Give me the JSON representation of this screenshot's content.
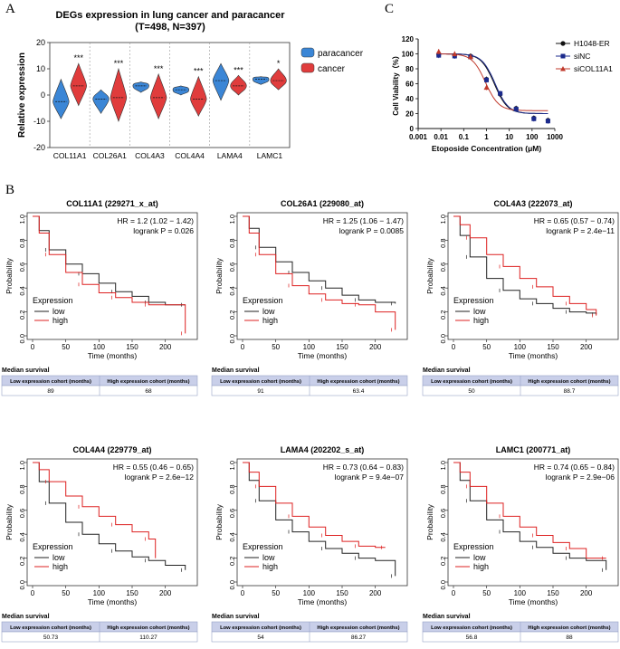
{
  "panel_labels": {
    "a": "A",
    "b": "B",
    "c": "C"
  },
  "chart_data": [
    {
      "id": "violin",
      "type": "violin",
      "title_line1": "DEGs expression in lung cancer and paracancer",
      "title_line2": "(T=498, N=397)",
      "ylabel": "Relative expression",
      "ylim": [
        -20,
        20
      ],
      "yticks": [
        -20,
        -10,
        0,
        10,
        20
      ],
      "categories": [
        "COL11A1",
        "COL26A1",
        "COL4A3",
        "COL4A4",
        "LAMA4",
        "LAMC1"
      ],
      "significance": [
        "***",
        "***",
        "***",
        "***",
        "***",
        "*"
      ],
      "series": [
        {
          "name": "paracancer",
          "color": "#3b86d6",
          "median": [
            -2.5,
            -1.5,
            3.5,
            2,
            5.5,
            6
          ],
          "min": [
            -9,
            -7,
            1,
            0,
            -2,
            4
          ],
          "max": [
            6,
            2,
            5,
            3.5,
            12,
            7
          ]
        },
        {
          "name": "cancer",
          "color": "#e03c3c",
          "median": [
            3.5,
            -1,
            -1,
            -1.5,
            3.5,
            5.5
          ],
          "min": [
            -4,
            -10,
            -9,
            -8,
            0,
            2
          ],
          "max": [
            12,
            10,
            8,
            7,
            7.5,
            10
          ]
        }
      ]
    },
    {
      "id": "viability",
      "type": "line",
      "ylabel": "Cell Viability（%）",
      "xlabel": "Etoposide Concentration (μM)",
      "xscale": "log",
      "xlim": [
        0.001,
        1000
      ],
      "xticks": [
        "0.001",
        "0.01",
        "0.1",
        "1",
        "10",
        "100",
        "1000"
      ],
      "ylim": [
        0,
        120
      ],
      "yticks": [
        0,
        20,
        40,
        60,
        80,
        100,
        120
      ],
      "series": [
        {
          "name": "H1048-ER",
          "marker": "circle",
          "color": "#111111",
          "x": [
            0.008,
            0.04,
            0.2,
            1,
            4,
            20,
            120,
            500
          ],
          "y": [
            99,
            98,
            97,
            66,
            46,
            27,
            14,
            11
          ]
        },
        {
          "name": "siNC",
          "marker": "square",
          "color": "#1b2a8c",
          "x": [
            0.008,
            0.04,
            0.2,
            1,
            4,
            20,
            120,
            500
          ],
          "y": [
            98,
            97,
            96,
            65,
            47,
            26,
            13,
            10
          ]
        },
        {
          "name": "siCOL11A1",
          "marker": "triangle",
          "color": "#c0392b",
          "x": [
            0.008,
            0.04,
            0.2,
            1
          ],
          "y": [
            103,
            100,
            96,
            55
          ]
        }
      ],
      "curves": [
        {
          "color": "#111111",
          "ic50": 2.2,
          "bottom": 20
        },
        {
          "color": "#1b2a8c",
          "ic50": 2.4,
          "bottom": 20
        },
        {
          "color": "#c0392b",
          "ic50": 0.9,
          "bottom": 24
        }
      ]
    },
    {
      "id": "km-col11a1",
      "type": "km",
      "title": "COL11A1 (229271_x_at)",
      "hr": "HR = 1.2 (1.02 − 1.42)",
      "logrank": "logrank P = 0.026",
      "xlabel": "Time (months)",
      "ylabel": "Probability",
      "xlim": [
        0,
        240
      ],
      "xticks": [
        0,
        50,
        100,
        150,
        200
      ],
      "yticks": [
        0.0,
        0.2,
        0.4,
        0.6,
        0.8,
        1.0
      ],
      "legend_title": "Expression",
      "legend": [
        "low",
        "high"
      ],
      "series_colors": [
        "#222222",
        "#dd2020"
      ],
      "curves": [
        {
          "name": "low",
          "points": [
            [
              0,
              1
            ],
            [
              10,
              0.88
            ],
            [
              25,
              0.72
            ],
            [
              50,
              0.6
            ],
            [
              75,
              0.52
            ],
            [
              100,
              0.44
            ],
            [
              125,
              0.37
            ],
            [
              150,
              0.33
            ],
            [
              175,
              0.28
            ],
            [
              200,
              0.26
            ],
            [
              230,
              0.26
            ]
          ]
        },
        {
          "name": "high",
          "points": [
            [
              0,
              1
            ],
            [
              10,
              0.86
            ],
            [
              25,
              0.68
            ],
            [
              50,
              0.53
            ],
            [
              75,
              0.43
            ],
            [
              100,
              0.36
            ],
            [
              125,
              0.32
            ],
            [
              150,
              0.28
            ],
            [
              175,
              0.26
            ],
            [
              200,
              0.26
            ],
            [
              230,
              0.02
            ]
          ]
        }
      ],
      "median_label": "Median survival",
      "median_headers": [
        "Low expression cohort (months)",
        "High expression cohort (months)"
      ],
      "median_values": [
        "89",
        "68"
      ]
    },
    {
      "id": "km-col26a1",
      "type": "km",
      "title": "COL26A1 (229080_at)",
      "hr": "HR = 1.25 (1.06 − 1.47)",
      "logrank": "logrank P = 0.0085",
      "xlabel": "Time (months)",
      "ylabel": "Probability",
      "xlim": [
        0,
        240
      ],
      "xticks": [
        0,
        50,
        100,
        150,
        200
      ],
      "yticks": [
        0.0,
        0.2,
        0.4,
        0.6,
        0.8,
        1.0
      ],
      "legend_title": "Expression",
      "legend": [
        "low",
        "high"
      ],
      "series_colors": [
        "#222222",
        "#dd2020"
      ],
      "curves": [
        {
          "name": "low",
          "points": [
            [
              0,
              1
            ],
            [
              10,
              0.9
            ],
            [
              25,
              0.74
            ],
            [
              50,
              0.62
            ],
            [
              75,
              0.53
            ],
            [
              100,
              0.46
            ],
            [
              125,
              0.4
            ],
            [
              150,
              0.34
            ],
            [
              175,
              0.3
            ],
            [
              200,
              0.28
            ],
            [
              230,
              0.27
            ]
          ]
        },
        {
          "name": "high",
          "points": [
            [
              0,
              1
            ],
            [
              10,
              0.86
            ],
            [
              25,
              0.68
            ],
            [
              50,
              0.52
            ],
            [
              75,
              0.42
            ],
            [
              100,
              0.35
            ],
            [
              125,
              0.3
            ],
            [
              150,
              0.27
            ],
            [
              175,
              0.26
            ],
            [
              200,
              0.2
            ],
            [
              230,
              0.05
            ]
          ]
        }
      ],
      "median_label": "Median survival",
      "median_headers": [
        "Low expression cohort (months)",
        "High expression cohort (months)"
      ],
      "median_values": [
        "91",
        "63.4"
      ]
    },
    {
      "id": "km-col4a3",
      "type": "km",
      "title": "COL4A3 (222073_at)",
      "hr": "HR = 0.65 (0.57 − 0.74)",
      "logrank": "logrank P = 2.4e−11",
      "xlabel": "Time (months)",
      "ylabel": "Probability",
      "xlim": [
        0,
        240
      ],
      "xticks": [
        0,
        50,
        100,
        150,
        200
      ],
      "yticks": [
        0.0,
        0.2,
        0.4,
        0.6,
        0.8,
        1.0
      ],
      "legend_title": "Expression",
      "legend": [
        "low",
        "high"
      ],
      "series_colors": [
        "#222222",
        "#dd2020"
      ],
      "curves": [
        {
          "name": "low",
          "points": [
            [
              0,
              1
            ],
            [
              10,
              0.84
            ],
            [
              25,
              0.66
            ],
            [
              50,
              0.48
            ],
            [
              75,
              0.38
            ],
            [
              100,
              0.31
            ],
            [
              125,
              0.27
            ],
            [
              150,
              0.23
            ],
            [
              175,
              0.2
            ],
            [
              200,
              0.19
            ],
            [
              215,
              0.18
            ]
          ]
        },
        {
          "name": "high",
          "points": [
            [
              0,
              1
            ],
            [
              10,
              0.93
            ],
            [
              25,
              0.82
            ],
            [
              50,
              0.68
            ],
            [
              75,
              0.58
            ],
            [
              100,
              0.48
            ],
            [
              125,
              0.41
            ],
            [
              150,
              0.33
            ],
            [
              175,
              0.27
            ],
            [
              200,
              0.22
            ],
            [
              215,
              0.17
            ]
          ]
        }
      ],
      "median_label": "Median survival",
      "median_headers": [
        "Low expression cohort (months)",
        "High expression cohort (months)"
      ],
      "median_values": [
        "50",
        "88.7"
      ]
    },
    {
      "id": "km-col4a4",
      "type": "km",
      "title": "COL4A4 (229779_at)",
      "hr": "HR = 0.55 (0.46 − 0.65)",
      "logrank": "logrank P = 2.6e−12",
      "xlabel": "Time (months)",
      "ylabel": "Probability",
      "xlim": [
        0,
        240
      ],
      "xticks": [
        0,
        50,
        100,
        150,
        200
      ],
      "yticks": [
        0.0,
        0.2,
        0.4,
        0.6,
        0.8,
        1.0
      ],
      "legend_title": "Expression",
      "legend": [
        "low",
        "high"
      ],
      "series_colors": [
        "#222222",
        "#dd2020"
      ],
      "curves": [
        {
          "name": "low",
          "points": [
            [
              0,
              1
            ],
            [
              10,
              0.84
            ],
            [
              25,
              0.66
            ],
            [
              50,
              0.5
            ],
            [
              75,
              0.4
            ],
            [
              100,
              0.32
            ],
            [
              125,
              0.26
            ],
            [
              150,
              0.21
            ],
            [
              175,
              0.18
            ],
            [
              200,
              0.14
            ],
            [
              230,
              0.1
            ]
          ]
        },
        {
          "name": "high",
          "points": [
            [
              0,
              1
            ],
            [
              10,
              0.94
            ],
            [
              25,
              0.84
            ],
            [
              50,
              0.72
            ],
            [
              75,
              0.63
            ],
            [
              100,
              0.55
            ],
            [
              125,
              0.48
            ],
            [
              150,
              0.42
            ],
            [
              175,
              0.36
            ],
            [
              185,
              0.2
            ]
          ]
        }
      ],
      "median_label": "Median survival",
      "median_headers": [
        "Low expression cohort (months)",
        "High expression cohort (months)"
      ],
      "median_values": [
        "50.73",
        "110.27"
      ]
    },
    {
      "id": "km-lama4",
      "type": "km",
      "title": "LAMA4 (202202_s_at)",
      "hr": "HR = 0.73 (0.64 − 0.83)",
      "logrank": "logrank P = 9.4e−07",
      "xlabel": "Time (months)",
      "ylabel": "Probability",
      "xlim": [
        0,
        240
      ],
      "xticks": [
        0,
        50,
        100,
        150,
        200
      ],
      "yticks": [
        0.0,
        0.2,
        0.4,
        0.6,
        0.8,
        1.0
      ],
      "legend_title": "Expression",
      "legend": [
        "low",
        "high"
      ],
      "series_colors": [
        "#222222",
        "#dd2020"
      ],
      "curves": [
        {
          "name": "low",
          "points": [
            [
              0,
              1
            ],
            [
              10,
              0.85
            ],
            [
              25,
              0.68
            ],
            [
              50,
              0.52
            ],
            [
              75,
              0.42
            ],
            [
              100,
              0.34
            ],
            [
              125,
              0.28
            ],
            [
              150,
              0.24
            ],
            [
              175,
              0.2
            ],
            [
              200,
              0.18
            ],
            [
              230,
              0.05
            ]
          ]
        },
        {
          "name": "high",
          "points": [
            [
              0,
              1
            ],
            [
              10,
              0.92
            ],
            [
              25,
              0.8
            ],
            [
              50,
              0.66
            ],
            [
              75,
              0.55
            ],
            [
              100,
              0.46
            ],
            [
              125,
              0.39
            ],
            [
              150,
              0.34
            ],
            [
              175,
              0.3
            ],
            [
              200,
              0.29
            ],
            [
              215,
              0.29
            ]
          ]
        }
      ],
      "median_label": "Median survival",
      "median_headers": [
        "Low expression cohort (months)",
        "High expression cohort (months)"
      ],
      "median_values": [
        "54",
        "86.27"
      ]
    },
    {
      "id": "km-lamc1",
      "type": "km",
      "title": "LAMC1 (200771_at)",
      "hr": "HR = 0.74 (0.65 − 0.84)",
      "logrank": "logrank P = 2.9e−06",
      "xlabel": "Time (months)",
      "ylabel": "Probability",
      "xlim": [
        0,
        240
      ],
      "xticks": [
        0,
        50,
        100,
        150,
        200
      ],
      "yticks": [
        0.0,
        0.2,
        0.4,
        0.6,
        0.8,
        1.0
      ],
      "legend_title": "Expression",
      "legend": [
        "low",
        "high"
      ],
      "series_colors": [
        "#222222",
        "#dd2020"
      ],
      "curves": [
        {
          "name": "low",
          "points": [
            [
              0,
              1
            ],
            [
              10,
              0.85
            ],
            [
              25,
              0.68
            ],
            [
              50,
              0.52
            ],
            [
              75,
              0.42
            ],
            [
              100,
              0.34
            ],
            [
              125,
              0.29
            ],
            [
              150,
              0.24
            ],
            [
              175,
              0.2
            ],
            [
              200,
              0.18
            ],
            [
              230,
              0.1
            ]
          ]
        },
        {
          "name": "high",
          "points": [
            [
              0,
              1
            ],
            [
              10,
              0.92
            ],
            [
              25,
              0.8
            ],
            [
              50,
              0.66
            ],
            [
              75,
              0.55
            ],
            [
              100,
              0.46
            ],
            [
              125,
              0.39
            ],
            [
              150,
              0.33
            ],
            [
              175,
              0.28
            ],
            [
              200,
              0.2
            ],
            [
              230,
              0.2
            ]
          ]
        }
      ],
      "median_label": "Median survival",
      "median_headers": [
        "Low expression cohort (months)",
        "High expression cohort (months)"
      ],
      "median_values": [
        "56.8",
        "88"
      ]
    }
  ]
}
